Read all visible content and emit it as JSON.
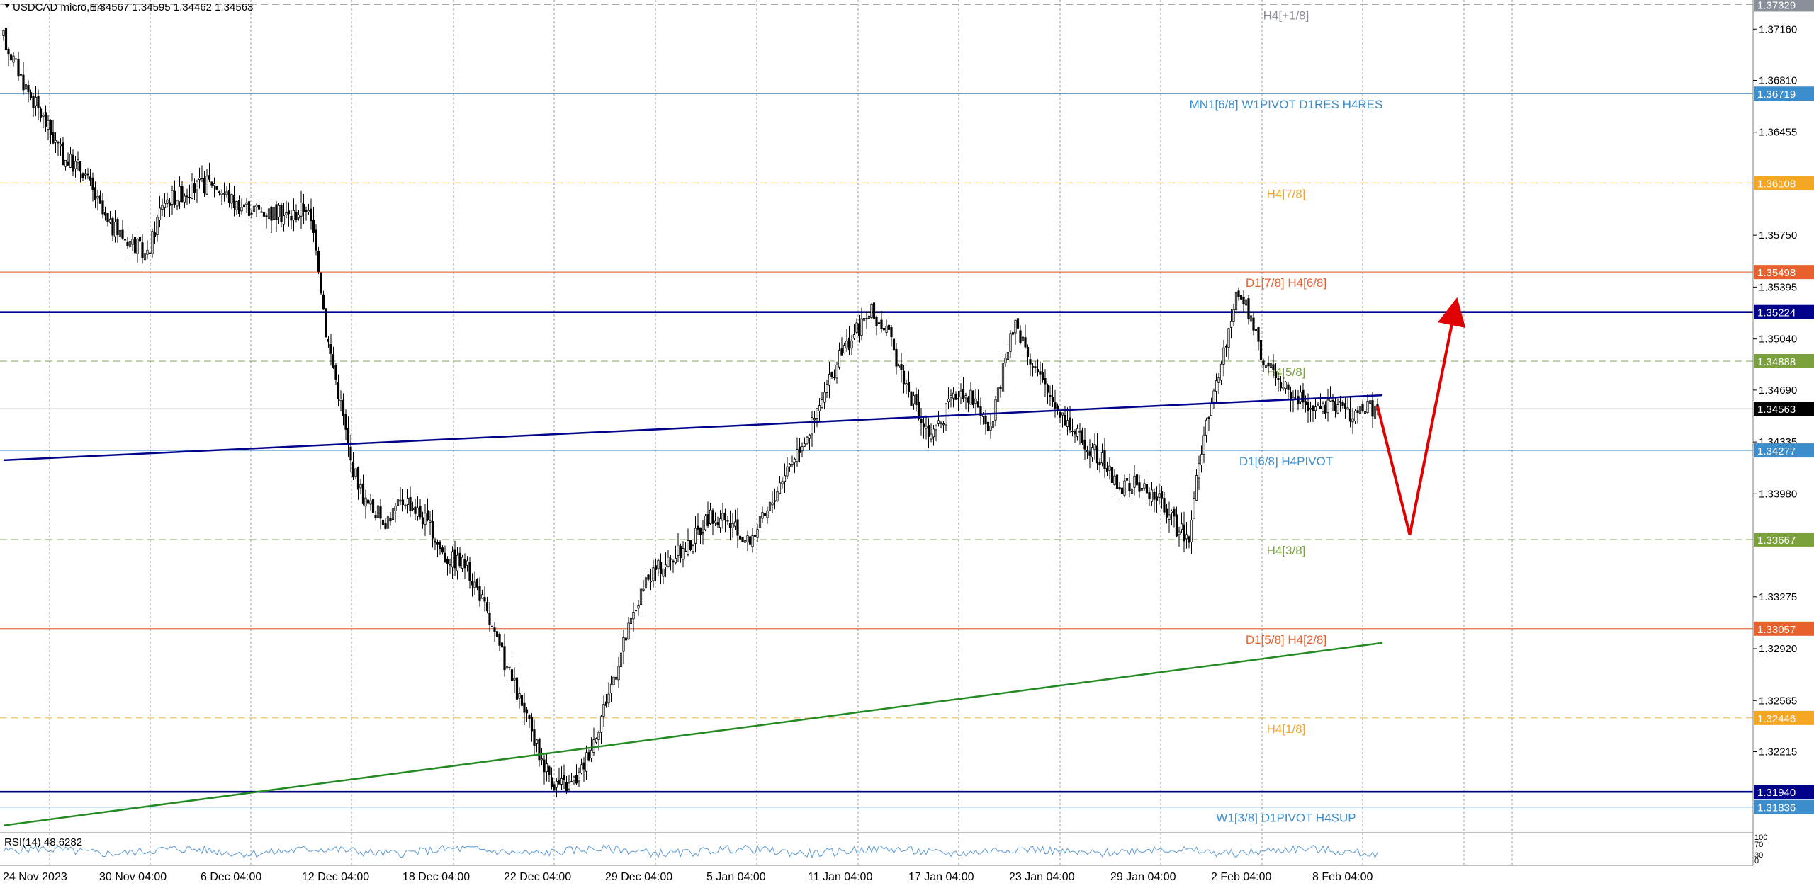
{
  "header": {
    "symbol_timeframe": "USDCAD micro,H4",
    "ohlc": "1.34567 1.34595 1.34462 1.34563",
    "menu_icon": "triangle-down-icon"
  },
  "rsi": {
    "label": "RSI(14) 48.6282",
    "ticks": [
      "100",
      "70",
      "30",
      "0"
    ]
  },
  "colors": {
    "candle": "#000000",
    "trendline_blue": "#00008b",
    "support_green": "#228b22",
    "projection_arrow": "#e00000",
    "murrey_blue": "#3c8dcc",
    "murrey_orange": "#f5a623",
    "murrey_red": "#e8602c",
    "murrey_olive": "#7aa13c",
    "last_price_bg": "#000000"
  },
  "chart_data": {
    "type": "candlestick",
    "symbol": "USDCAD micro",
    "timeframe": "H4",
    "ylim": [
      1.3166,
      1.3736
    ],
    "y_ticks": [
      "1.37160",
      "1.36810",
      "1.36455",
      "1.35750",
      "1.35395",
      "1.35040",
      "1.34690",
      "1.34335",
      "1.33980",
      "1.33275",
      "1.32920",
      "1.32565",
      "1.32215"
    ],
    "x_labels": [
      "24 Nov 2023",
      "30 Nov 04:00",
      "6 Dec 04:00",
      "12 Dec 04:00",
      "18 Dec 04:00",
      "22 Dec 04:00",
      "29 Dec 04:00",
      "5 Jan 04:00",
      "11 Jan 04:00",
      "17 Jan 04:00",
      "23 Jan 04:00",
      "29 Jan 04:00",
      "2 Feb 04:00",
      "8 Feb 04:00"
    ],
    "last_price": "1.34563",
    "close_path": [
      [
        0,
        1.371
      ],
      [
        8,
        1.368
      ],
      [
        16,
        1.3655
      ],
      [
        24,
        1.3628
      ],
      [
        32,
        1.362
      ],
      [
        42,
        1.3582
      ],
      [
        52,
        1.357
      ],
      [
        58,
        1.356
      ],
      [
        64,
        1.3598
      ],
      [
        72,
        1.3604
      ],
      [
        84,
        1.3612
      ],
      [
        94,
        1.3596
      ],
      [
        104,
        1.3592
      ],
      [
        116,
        1.3588
      ],
      [
        122,
        1.3595
      ],
      [
        126,
        1.357
      ],
      [
        130,
        1.351
      ],
      [
        136,
        1.346
      ],
      [
        140,
        1.342
      ],
      [
        146,
        1.3392
      ],
      [
        154,
        1.338
      ],
      [
        162,
        1.3395
      ],
      [
        170,
        1.338
      ],
      [
        178,
        1.3355
      ],
      [
        186,
        1.335
      ],
      [
        192,
        1.333
      ],
      [
        198,
        1.33
      ],
      [
        204,
        1.3275
      ],
      [
        210,
        1.3248
      ],
      [
        216,
        1.322
      ],
      [
        222,
        1.32
      ],
      [
        228,
        1.3198
      ],
      [
        232,
        1.3205
      ],
      [
        238,
        1.323
      ],
      [
        244,
        1.3262
      ],
      [
        250,
        1.3295
      ],
      [
        256,
        1.3325
      ],
      [
        262,
        1.3345
      ],
      [
        268,
        1.3352
      ],
      [
        276,
        1.3362
      ],
      [
        284,
        1.3382
      ],
      [
        292,
        1.3378
      ],
      [
        300,
        1.3365
      ],
      [
        308,
        1.3385
      ],
      [
        314,
        1.341
      ],
      [
        320,
        1.3428
      ],
      [
        326,
        1.3445
      ],
      [
        332,
        1.347
      ],
      [
        338,
        1.3495
      ],
      [
        344,
        1.351
      ],
      [
        350,
        1.3522
      ],
      [
        356,
        1.351
      ],
      [
        362,
        1.3482
      ],
      [
        368,
        1.3455
      ],
      [
        374,
        1.3435
      ],
      [
        380,
        1.3455
      ],
      [
        386,
        1.347
      ],
      [
        392,
        1.3462
      ],
      [
        398,
        1.344
      ],
      [
        404,
        1.349
      ],
      [
        408,
        1.3515
      ],
      [
        414,
        1.3492
      ],
      [
        420,
        1.347
      ],
      [
        426,
        1.3455
      ],
      [
        432,
        1.344
      ],
      [
        438,
        1.343
      ],
      [
        444,
        1.3418
      ],
      [
        450,
        1.3402
      ],
      [
        456,
        1.3405
      ],
      [
        462,
        1.34
      ],
      [
        468,
        1.339
      ],
      [
        474,
        1.3372
      ],
      [
        478,
        1.337
      ],
      [
        482,
        1.342
      ],
      [
        486,
        1.345
      ],
      [
        490,
        1.348
      ],
      [
        494,
        1.351
      ],
      [
        496,
        1.353
      ],
      [
        500,
        1.3532
      ],
      [
        504,
        1.351
      ],
      [
        508,
        1.3488
      ],
      [
        514,
        1.3475
      ],
      [
        520,
        1.3465
      ],
      [
        526,
        1.346
      ],
      [
        532,
        1.3455
      ],
      [
        538,
        1.3462
      ],
      [
        544,
        1.345
      ],
      [
        548,
        1.3458
      ],
      [
        554,
        1.3456
      ]
    ],
    "series": [
      {
        "name": "trendline",
        "points": [
          [
            0,
            1.3421
          ],
          [
            556,
            1.34655
          ]
        ]
      },
      {
        "name": "support",
        "points": [
          [
            0,
            1.3171
          ],
          [
            556,
            1.3296
          ]
        ]
      },
      {
        "name": "projection",
        "points": [
          [
            554,
            1.3458
          ],
          [
            567,
            1.337
          ],
          [
            585,
            1.3523
          ]
        ]
      }
    ],
    "levels": [
      {
        "price": 1.37329,
        "label": "H4[+1/8]",
        "price_label": "1.37329",
        "color": "#8a8f99",
        "style": "dashed"
      },
      {
        "price": 1.36719,
        "label": "MN1[6/8] W1PIVOT D1RES H4RES",
        "price_label": "1.36719",
        "color": "#3c8dcc",
        "style": "solid"
      },
      {
        "price": 1.36108,
        "label": "H4[7/8]",
        "price_label": "1.36108",
        "color": "#f5a623",
        "style": "dashed"
      },
      {
        "price": 1.35498,
        "label": "D1[7/8] H4[6/8]",
        "price_label": "1.35498",
        "color": "#e8602c",
        "style": "solid"
      },
      {
        "price": 1.35224,
        "label": "",
        "price_label": "1.35224",
        "color": "#00008b",
        "style": "bold"
      },
      {
        "price": 1.34888,
        "label": "H4[5/8]",
        "price_label": "1.34888",
        "color": "#7aa13c",
        "style": "dashed"
      },
      {
        "price": 1.34277,
        "label": "D1[6/8] H4PIVOT",
        "price_label": "1.34277",
        "color": "#3c8dcc",
        "style": "solid"
      },
      {
        "price": 1.33667,
        "label": "H4[3/8]",
        "price_label": "1.33667",
        "color": "#7aa13c",
        "style": "dashed"
      },
      {
        "price": 1.33057,
        "label": "D1[5/8] H4[2/8]",
        "price_label": "1.33057",
        "color": "#e8602c",
        "style": "solid"
      },
      {
        "price": 1.32446,
        "label": "H4[1/8]",
        "price_label": "1.32446",
        "color": "#f5a623",
        "style": "dashed"
      },
      {
        "price": 1.3194,
        "label": "",
        "price_label": "1.31940",
        "color": "#00008b",
        "style": "bold"
      },
      {
        "price": 1.31836,
        "label": "W1[3/8] D1PIVOT H4SUP",
        "price_label": "1.31836",
        "color": "#3c8dcc",
        "style": "solid"
      }
    ]
  }
}
